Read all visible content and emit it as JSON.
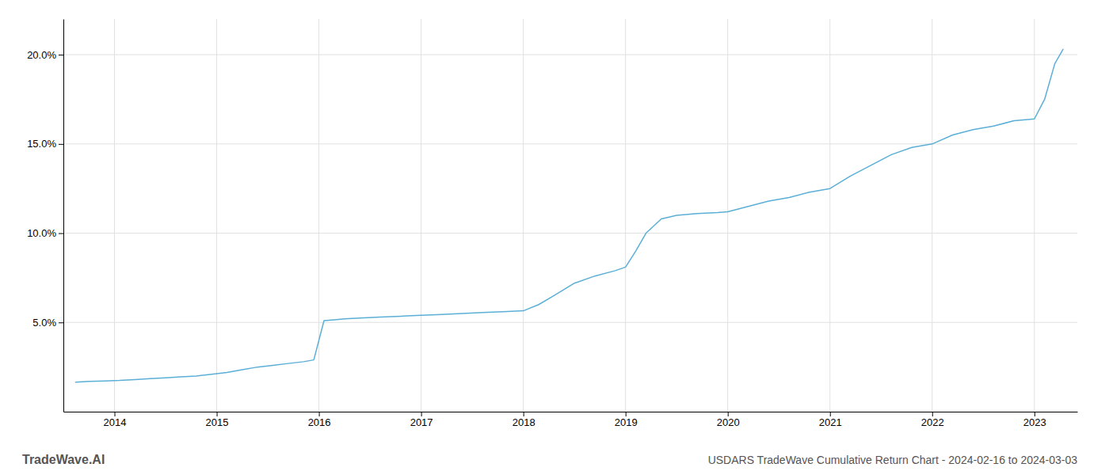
{
  "chart_data": {
    "type": "line",
    "title": "USDARS TradeWave Cumulative Return Chart - 2024-02-16 to 2024-03-03",
    "annotations": [
      "TradeWave.AI"
    ],
    "color": "#5bafd6",
    "grid": true,
    "x": [
      2013.62,
      2013.75,
      2013.9,
      2014.05,
      2014.2,
      2014.35,
      2014.5,
      2014.65,
      2014.8,
      2014.95,
      2015.1,
      2015.25,
      2015.4,
      2015.55,
      2015.7,
      2015.85,
      2015.95,
      2016.05,
      2016.15,
      2016.25,
      2016.4,
      2016.6,
      2016.8,
      2017.0,
      2017.2,
      2017.4,
      2017.6,
      2017.8,
      2018.0,
      2018.15,
      2018.3,
      2018.5,
      2018.7,
      2018.9,
      2019.0,
      2019.1,
      2019.2,
      2019.35,
      2019.5,
      2019.7,
      2019.9,
      2020.0,
      2020.2,
      2020.4,
      2020.6,
      2020.8,
      2021.0,
      2021.2,
      2021.4,
      2021.6,
      2021.8,
      2022.0,
      2022.2,
      2022.4,
      2022.6,
      2022.8,
      2023.0,
      2023.1,
      2023.2,
      2023.28
    ],
    "values": [
      1.65,
      1.7,
      1.72,
      1.75,
      1.8,
      1.85,
      1.9,
      1.95,
      2.0,
      2.1,
      2.2,
      2.35,
      2.5,
      2.6,
      2.7,
      2.8,
      2.9,
      5.1,
      5.15,
      5.2,
      5.25,
      5.3,
      5.35,
      5.4,
      5.45,
      5.5,
      5.55,
      5.6,
      5.65,
      6.0,
      6.5,
      7.2,
      7.6,
      7.9,
      8.1,
      9.0,
      10.0,
      10.8,
      11.0,
      11.1,
      11.15,
      11.2,
      11.5,
      11.8,
      12.0,
      12.3,
      12.5,
      13.2,
      13.8,
      14.4,
      14.8,
      15.0,
      15.5,
      15.8,
      16.0,
      16.3,
      16.4,
      17.5,
      19.5,
      20.3
    ],
    "xlim": [
      2013.5,
      2023.42
    ],
    "xticks": [
      2014,
      2015,
      2016,
      2017,
      2018,
      2019,
      2020,
      2021,
      2022,
      2023
    ],
    "ylim": [
      0,
      22
    ],
    "yticks": [
      {
        "value": 5.0,
        "label": "5.0%"
      },
      {
        "value": 10.0,
        "label": "10.0%"
      },
      {
        "value": 15.0,
        "label": "15.0%"
      },
      {
        "value": 20.0,
        "label": "20.0%"
      }
    ]
  }
}
